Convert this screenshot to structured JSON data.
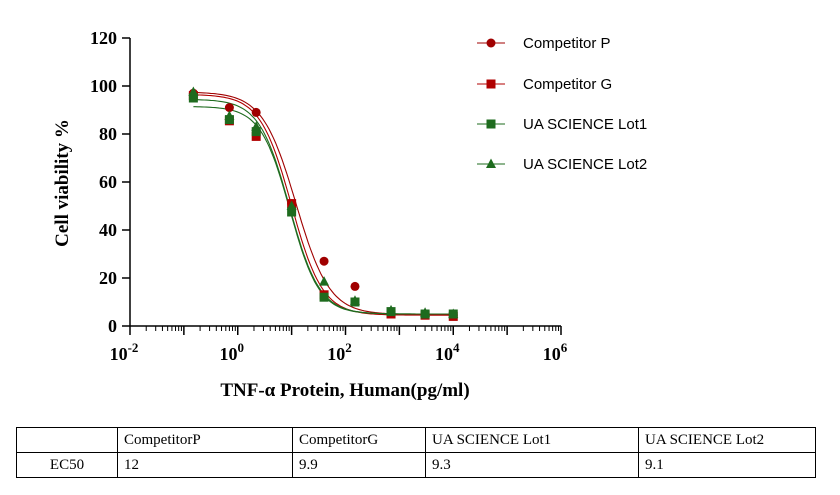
{
  "chart_data": {
    "type": "scatter",
    "ylabel": "Cell viability %",
    "xlabel": "TNF-α Protein, Human(pg/ml)",
    "xscale": "log",
    "xlim": [
      0.01,
      1000000
    ],
    "ylim": [
      0,
      120
    ],
    "y_ticks": [
      "0",
      "20",
      "40",
      "60",
      "80",
      "100",
      "120"
    ],
    "x_ticks": [
      {
        "base": "10",
        "exp": "-2"
      },
      {
        "base": "10",
        "exp": "0"
      },
      {
        "base": "10",
        "exp": "2"
      },
      {
        "base": "10",
        "exp": "4"
      },
      {
        "base": "10",
        "exp": "6"
      }
    ],
    "legend_placement": "top-right",
    "grid": false,
    "x": [
      0.15,
      0.7,
      2.2,
      10,
      40,
      150,
      700,
      3000,
      10000
    ],
    "series": [
      {
        "name": "Competitor  P",
        "color": "#a00000",
        "marker": "circle",
        "values": [
          97,
          91,
          89,
          51,
          27,
          16.5,
          6,
          5,
          4.5
        ],
        "fit": {
          "top": 97.5,
          "bottom": 4.8,
          "ec50": 12,
          "hill": 1.4
        }
      },
      {
        "name": "Competitor  G",
        "color": "#b00000",
        "marker": "square",
        "values": [
          96,
          85.5,
          79,
          51,
          13,
          10,
          5,
          4.5,
          4
        ],
        "fit": {
          "top": 96.5,
          "bottom": 4.5,
          "ec50": 9.9,
          "hill": 1.5
        }
      },
      {
        "name": "UA SCIENCE Lot1",
        "color": "#1e6b1e",
        "marker": "square",
        "values": [
          95,
          86,
          81,
          47.5,
          12,
          10,
          6,
          5,
          5
        ],
        "fit": {
          "top": 91.5,
          "bottom": 5,
          "ec50": 9.3,
          "hill": 1.6
        }
      },
      {
        "name": "UA SCIENCE Lot2",
        "color": "#1e6b1e",
        "marker": "triangle",
        "values": [
          97.5,
          87.5,
          83,
          50,
          18.5,
          10.5,
          6.5,
          5.5,
          5
        ],
        "fit": {
          "top": 94.5,
          "bottom": 5,
          "ec50": 9.1,
          "hill": 1.55
        }
      }
    ]
  },
  "table": {
    "headers": [
      "",
      "CompetitorP",
      "CompetitorG",
      "UA SCIENCE Lot1",
      "UA SCIENCE Lot2"
    ],
    "row": {
      "label": "EC50",
      "values": [
        "12",
        "9.9",
        "9.3",
        "9.1"
      ]
    }
  }
}
